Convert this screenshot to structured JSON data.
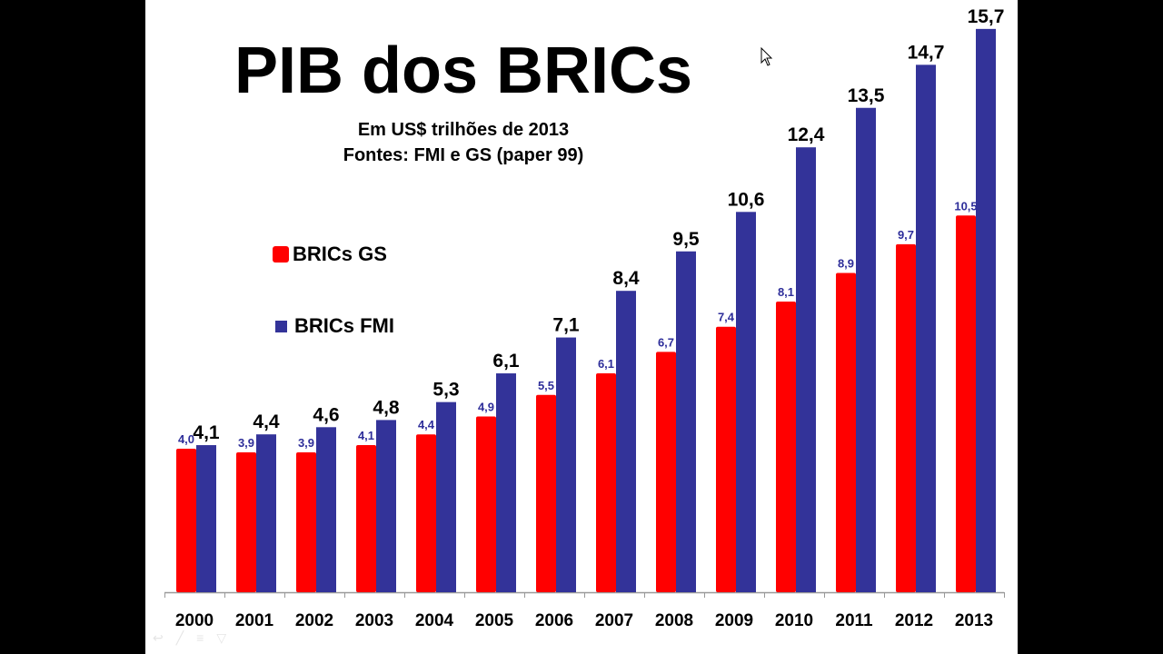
{
  "slide": {
    "title": "PIB dos BRICs",
    "subtitle_line1": "Em US$ trilhões de 2013",
    "subtitle_line2": "Fontes: FMI e GS (paper 99)"
  },
  "toolbar_icons": [
    "arrow-back-icon",
    "pen-icon",
    "menu-icon",
    "navigate-icon"
  ],
  "chart_data": {
    "type": "bar",
    "title": "PIB dos BRICs",
    "subtitle": "Em US$ trilhões de 2013 / Fontes: FMI e GS (paper 99)",
    "xlabel": "",
    "ylabel": "",
    "ylim": [
      0,
      16
    ],
    "grid": false,
    "legend_position": "upper-left",
    "categories": [
      "2000",
      "2001",
      "2002",
      "2003",
      "2004",
      "2005",
      "2006",
      "2007",
      "2008",
      "2009",
      "2010",
      "2011",
      "2012",
      "2013"
    ],
    "series": [
      {
        "name": "BRICs GS",
        "color": "#ff0000",
        "label_color": "#2e2e9a",
        "values": [
          4.0,
          3.9,
          3.9,
          4.1,
          4.4,
          4.9,
          5.5,
          6.1,
          6.7,
          7.4,
          8.1,
          8.9,
          9.7,
          10.5
        ],
        "labels": [
          "4,0",
          "3,9",
          "3,9",
          "4,1",
          "4,4",
          "4,9",
          "5,5",
          "6,1",
          "6,7",
          "7,4",
          "8,1",
          "8,9",
          "9,7",
          "10,5"
        ]
      },
      {
        "name": "BRICs FMI",
        "color": "#333399",
        "label_color": "#000000",
        "values": [
          4.1,
          4.4,
          4.6,
          4.8,
          5.3,
          6.1,
          7.1,
          8.4,
          9.5,
          10.6,
          12.4,
          13.5,
          14.7,
          15.7
        ],
        "labels": [
          "4,1",
          "4,4",
          "4,6",
          "4,8",
          "5,3",
          "6,1",
          "7,1",
          "8,4",
          "9,5",
          "10,6",
          "12,4",
          "13,5",
          "14,7",
          "15,7"
        ]
      }
    ]
  }
}
